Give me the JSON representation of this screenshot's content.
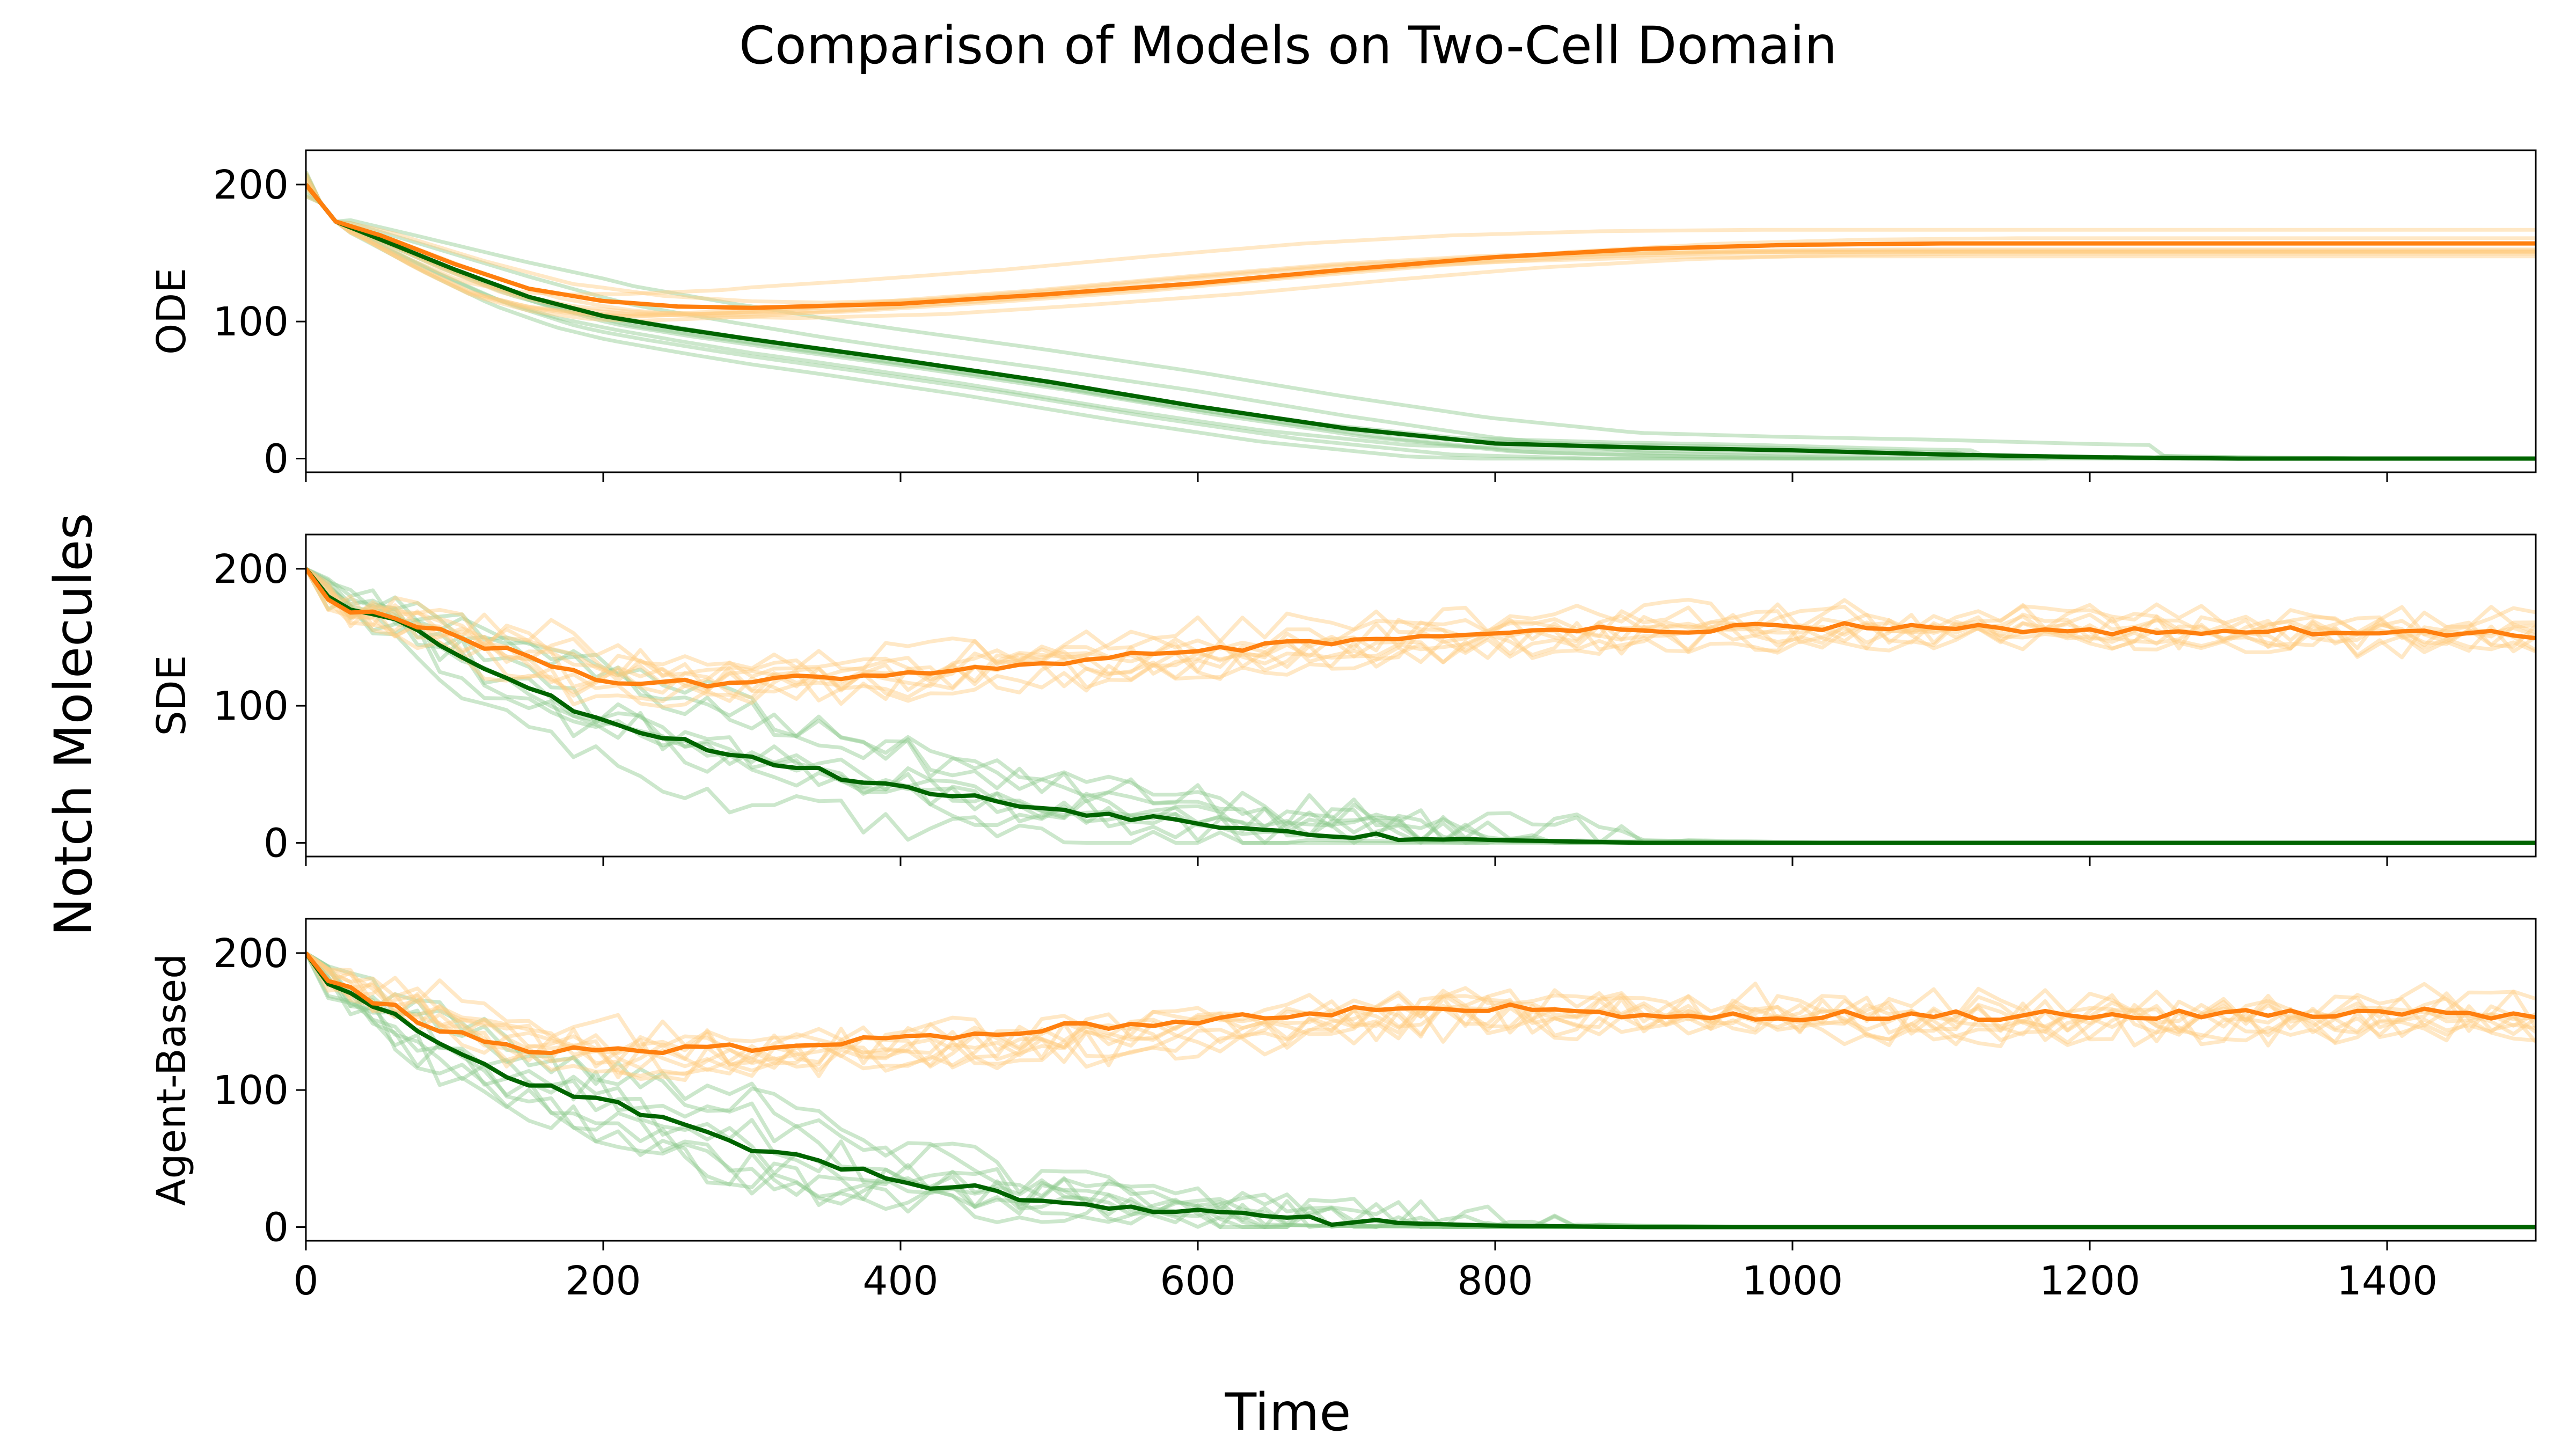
{
  "figure": {
    "title": "Comparison of Models on Two-Cell Domain",
    "xlabel": "Time",
    "ylabel": "Notch Molecules"
  },
  "colors": {
    "orange_mean": "#ff7f0e",
    "orange_faint": "#ffcc80",
    "green_mean": "#006400",
    "green_faint": "#8fc98f"
  },
  "chart_data": [
    {
      "type": "line",
      "ylabel": "ODE",
      "xlim": [
        0,
        1500
      ],
      "ylim": [
        -10,
        225
      ],
      "xticks": [
        0,
        200,
        400,
        600,
        800,
        1000,
        1200,
        1400
      ],
      "yticks": [
        0,
        100,
        200
      ],
      "show_xticklabels": false,
      "noise": 0,
      "series": [
        {
          "role": "mean-orange",
          "x": [
            0,
            20,
            50,
            100,
            150,
            200,
            250,
            300,
            400,
            500,
            600,
            700,
            800,
            900,
            1000,
            1100,
            1200,
            1300,
            1400,
            1500
          ],
          "y": [
            200,
            173,
            163,
            142,
            124,
            115,
            111,
            110,
            113,
            120,
            128,
            138,
            147,
            153,
            156,
            157,
            157,
            157,
            157,
            157
          ]
        },
        {
          "role": "mean-green",
          "x": [
            0,
            20,
            50,
            100,
            150,
            200,
            250,
            300,
            400,
            500,
            600,
            700,
            800,
            900,
            1000,
            1100,
            1200,
            1300,
            1400,
            1500
          ],
          "y": [
            200,
            173,
            160,
            138,
            118,
            104,
            95,
            87,
            72,
            56,
            38,
            22,
            11,
            8,
            6,
            3,
            1,
            0,
            0,
            0
          ]
        }
      ]
    },
    {
      "type": "line",
      "ylabel": "SDE",
      "xlim": [
        0,
        1500
      ],
      "ylim": [
        -10,
        225
      ],
      "xticks": [
        0,
        200,
        400,
        600,
        800,
        1000,
        1200,
        1400
      ],
      "yticks": [
        0,
        100,
        200
      ],
      "show_xticklabels": false,
      "noise": 12,
      "series": [
        {
          "role": "mean-orange",
          "x": [
            0,
            20,
            50,
            100,
            150,
            200,
            250,
            300,
            400,
            500,
            600,
            700,
            800,
            900,
            1000,
            1100,
            1200,
            1300,
            1400,
            1500
          ],
          "y": [
            200,
            172,
            166,
            150,
            135,
            118,
            116,
            117,
            125,
            132,
            140,
            148,
            152,
            156,
            157,
            158,
            155,
            155,
            154,
            152
          ]
        },
        {
          "role": "mean-green",
          "x": [
            0,
            20,
            50,
            100,
            150,
            200,
            250,
            300,
            400,
            500,
            600,
            700,
            800,
            900,
            1000,
            1100,
            1200,
            1300,
            1400,
            1500
          ],
          "y": [
            200,
            175,
            168,
            140,
            112,
            90,
            75,
            62,
            40,
            25,
            15,
            6,
            2,
            0,
            0,
            0,
            0,
            0,
            0,
            0
          ]
        }
      ]
    },
    {
      "type": "line",
      "ylabel": "Agent-Based",
      "xlim": [
        0,
        1500
      ],
      "ylim": [
        -10,
        225
      ],
      "xticks": [
        0,
        200,
        400,
        600,
        800,
        1000,
        1200,
        1400
      ],
      "yticks": [
        0,
        100,
        200
      ],
      "show_xticklabels": true,
      "noise": 14,
      "series": [
        {
          "role": "mean-orange",
          "x": [
            0,
            20,
            50,
            100,
            150,
            200,
            250,
            300,
            400,
            500,
            600,
            700,
            800,
            900,
            1000,
            1100,
            1200,
            1300,
            1400,
            1500
          ],
          "y": [
            200,
            175,
            165,
            140,
            128,
            128,
            130,
            132,
            136,
            145,
            152,
            158,
            160,
            156,
            154,
            155,
            154,
            156,
            157,
            155
          ]
        },
        {
          "role": "mean-green",
          "x": [
            0,
            20,
            50,
            100,
            150,
            200,
            250,
            300,
            400,
            500,
            600,
            700,
            800,
            900,
            1000,
            1100,
            1200,
            1300,
            1400,
            1500
          ],
          "y": [
            200,
            172,
            160,
            128,
            104,
            92,
            76,
            58,
            34,
            20,
            10,
            4,
            1,
            0,
            0,
            0,
            0,
            0,
            0,
            0
          ]
        }
      ]
    }
  ]
}
